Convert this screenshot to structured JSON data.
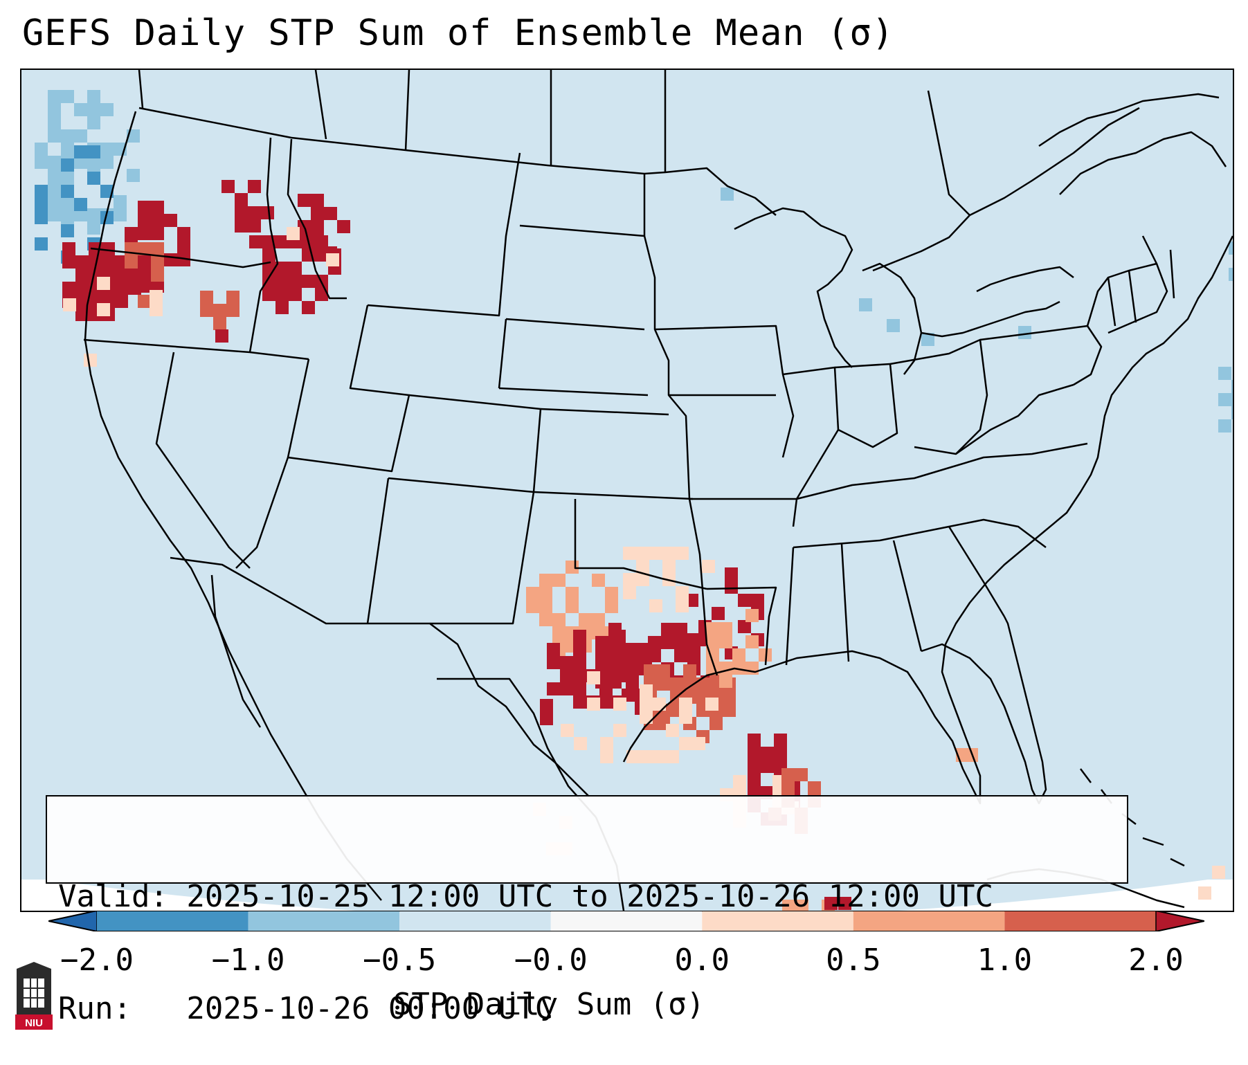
{
  "title": "GEFS Daily STP Sum of Ensemble Mean (σ)",
  "info": {
    "valid_line": "Valid: 2025-10-25 12:00 UTC to 2025-10-26 12:00 UTC",
    "run_line": "Run:   2025-10-26 00:00 UTC"
  },
  "colorbar": {
    "label": "STP Daily Sum (σ)",
    "ticks": [
      "−2.0",
      "−1.0",
      "−0.5",
      "−0.0",
      "0.0",
      "0.5",
      "1.0",
      "2.0"
    ],
    "bin_colors": [
      "#2166ac",
      "#4393c3",
      "#92c5de",
      "#d1e5f0",
      "#f7f7f7",
      "#fddbc7",
      "#f4a582",
      "#d6604d",
      "#b2182b"
    ]
  },
  "map": {
    "projection": "Lambert conformal, CONUS",
    "background_color": "#d1e5f0",
    "outside_color": "#ffffff"
  },
  "logo": {
    "text": "NIU"
  }
}
